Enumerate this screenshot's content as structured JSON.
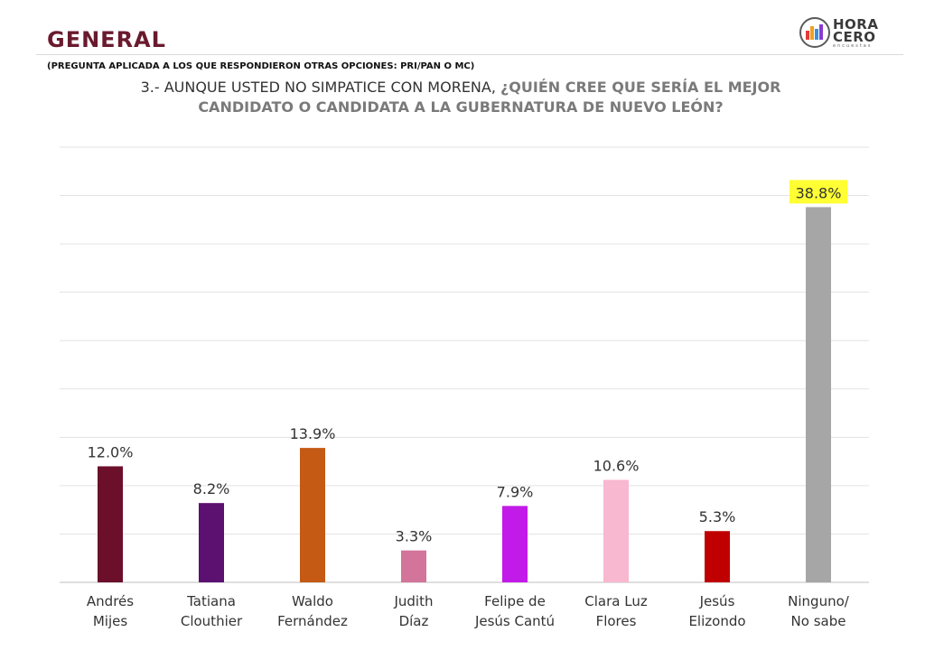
{
  "header": {
    "title": "GENERAL",
    "subtitle": "(PREGUNTA APLICADA A LOS QUE RESPONDIERON OTRAS OPCIONES: PRI/PAN O MC)",
    "question_plain": "3.- AUNQUE USTED NO SIMPATICE CON MORENA, ",
    "question_highlight": "¿QUIÉN CREE QUE SERÍA EL MEJOR CANDIDATO O CANDIDATA A LA GUBERNATURA DE NUEVO LEÓN?"
  },
  "logo": {
    "line1": "HORA",
    "line2": "CERO",
    "small": "encuestas"
  },
  "chart_data": {
    "type": "bar",
    "categories": [
      [
        "Andrés",
        "Mijes"
      ],
      [
        "Tatiana",
        "Clouthier"
      ],
      [
        "Waldo",
        "Fernández"
      ],
      [
        "Judith",
        "Díaz"
      ],
      [
        "Felipe de",
        "Jesús Cantú"
      ],
      [
        "Clara Luz",
        "Flores"
      ],
      [
        "Jesús",
        "Elizondo"
      ],
      [
        "Ninguno/",
        "No sabe"
      ]
    ],
    "values": [
      12.0,
      8.2,
      13.9,
      3.3,
      7.9,
      10.6,
      5.3,
      38.8
    ],
    "value_labels": [
      "12.0%",
      "8.2%",
      "13.9%",
      "3.3%",
      "7.9%",
      "10.6%",
      "5.3%",
      "38.8%"
    ],
    "colors": [
      "#6b0f2a",
      "#5c1070",
      "#c45a14",
      "#d3749a",
      "#c21ae8",
      "#f8b8d0",
      "#c00000",
      "#a6a6a6"
    ],
    "highlight_label_bg": "#ffff33",
    "highlight_index": 7,
    "ylim": [
      0,
      45
    ],
    "grid": true,
    "grid_lines": 9
  }
}
